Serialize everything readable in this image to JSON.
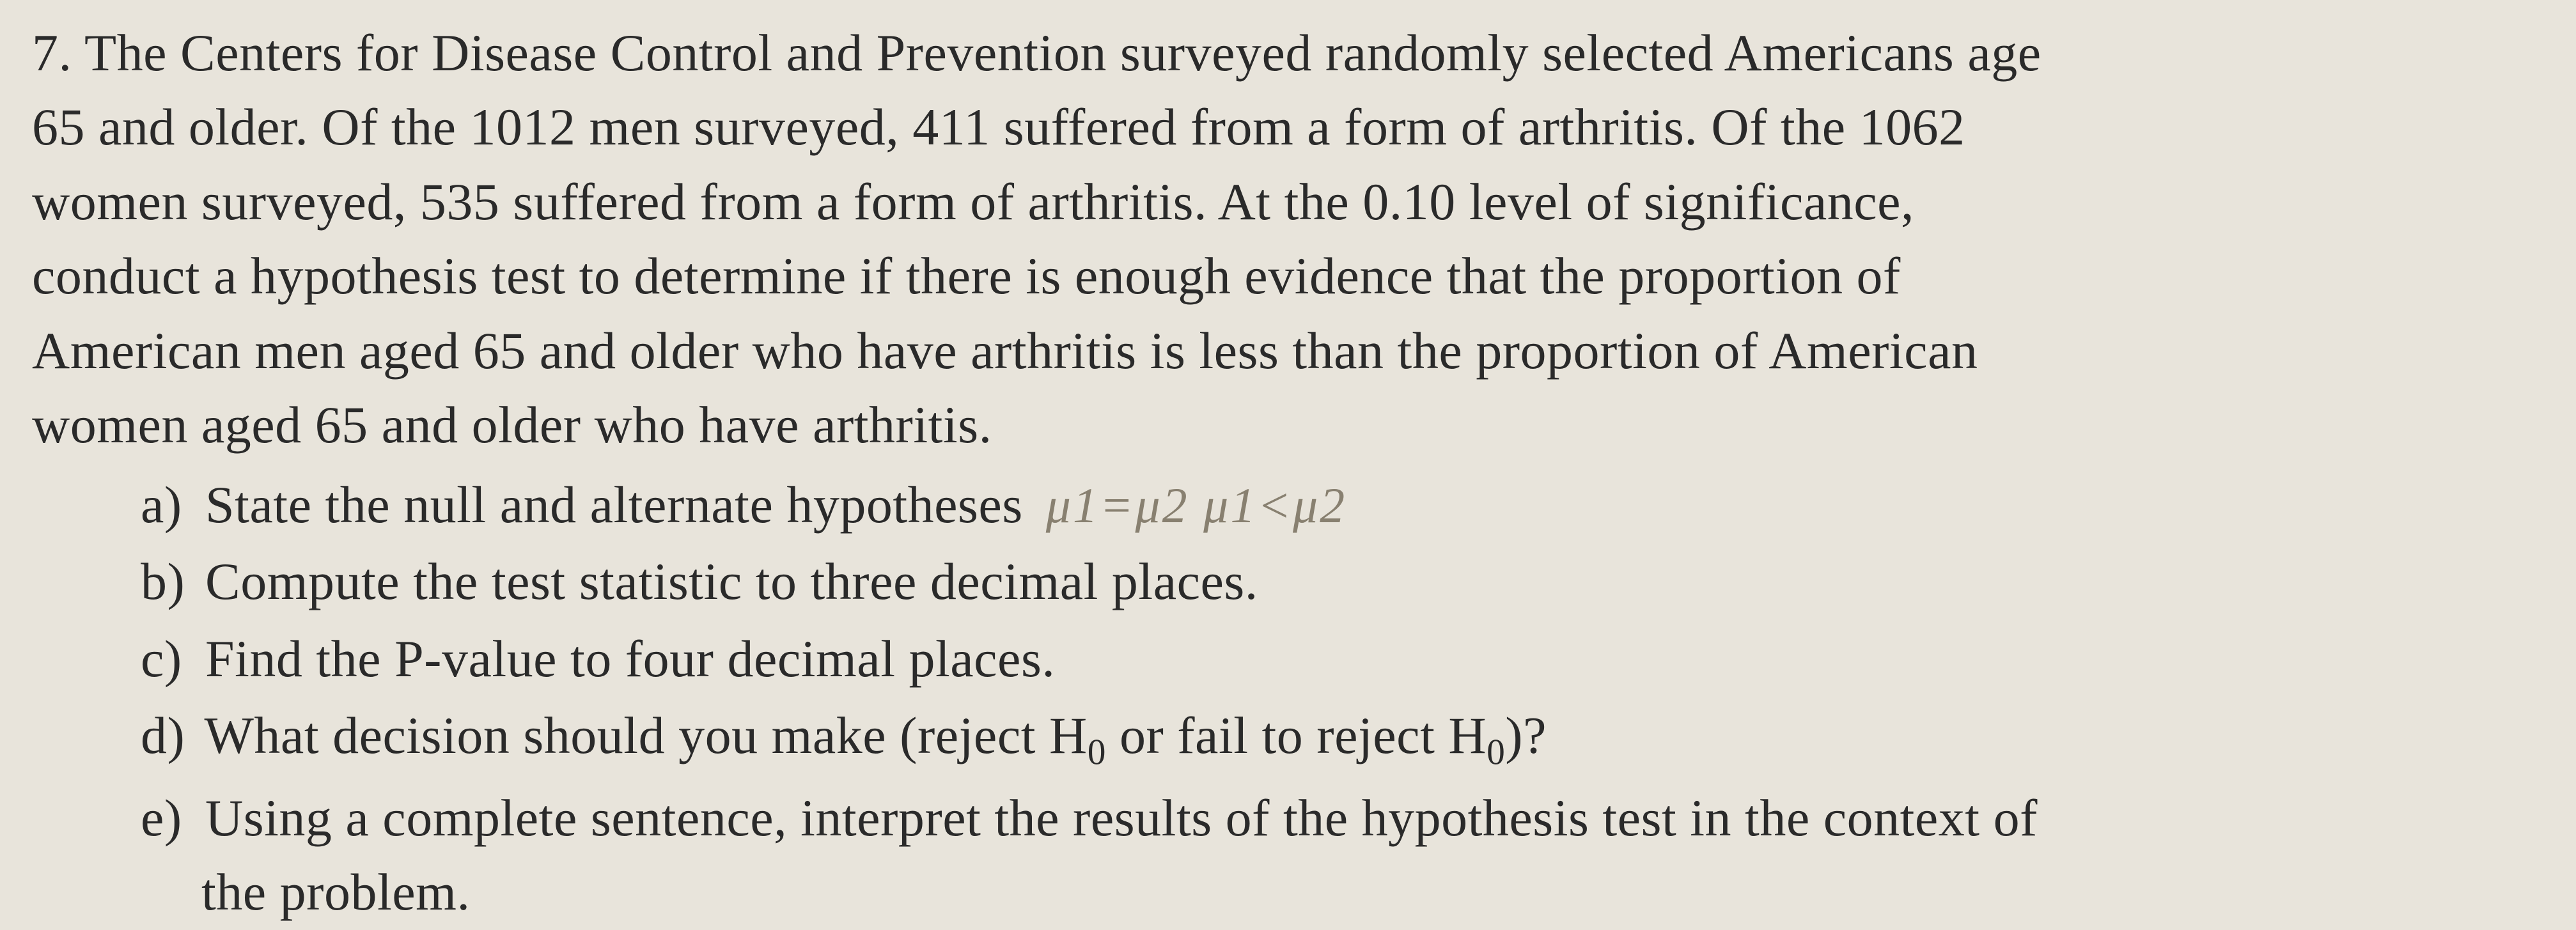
{
  "problem": {
    "number": "7.",
    "text_line1": "The Centers for Disease Control and Prevention surveyed randomly selected Americans age",
    "text_line2": "65 and older. Of the 1012 men surveyed, 411 suffered from a form of arthritis.  Of the 1062",
    "text_line3": "women surveyed, 535 suffered from a form of arthritis.  At the 0.10 level of significance,",
    "text_line4": "conduct a hypothesis test to determine if there is enough evidence that the proportion of",
    "text_line5": "American men aged 65 and older who have arthritis is less than the proportion of American",
    "text_line6": "women aged 65 and older who have arthritis."
  },
  "parts": {
    "a": {
      "label": "a)",
      "text": "State the null and alternate hypotheses",
      "handwritten": "μ1=μ2  μ1<μ2"
    },
    "b": {
      "label": "b)",
      "text": "Compute the test statistic to three decimal places."
    },
    "c": {
      "label": "c)",
      "text": "Find the P-value to four decimal places."
    },
    "d": {
      "label": "d)",
      "text_before": "What decision should you make (reject H",
      "sub1": "0",
      "text_mid": " or fail to reject H",
      "sub2": "0",
      "text_after": ")?"
    },
    "e": {
      "label": "e)",
      "text": "Using a complete sentence, interpret the results of the hypothesis test in the context of",
      "text_cont": "the problem."
    }
  },
  "styling": {
    "background_color": "#e8e4db",
    "text_color": "#2a2a2a",
    "light_text_color": "#555048",
    "handwritten_color": "#888070",
    "font_family": "Times New Roman",
    "font_size_pt": 82,
    "handwritten_font_size_pt": 78
  }
}
